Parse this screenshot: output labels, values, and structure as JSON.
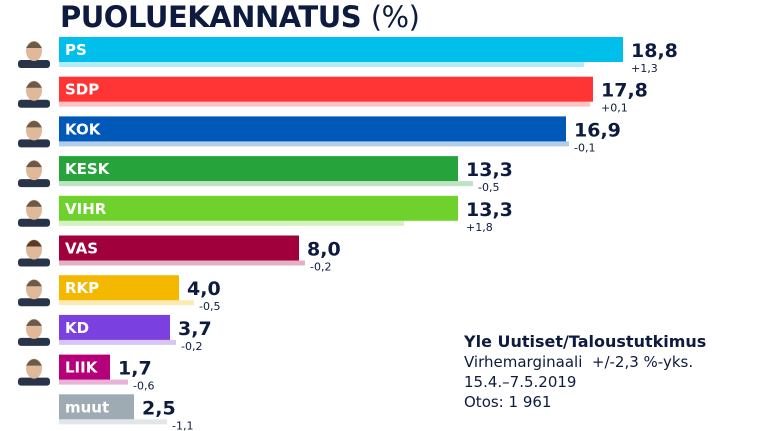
{
  "chart_data": {
    "type": "bar",
    "orientation": "horizontal",
    "title": "PUOLUEKANNATUS",
    "title_unit": "(%)",
    "categories": [
      "PS",
      "SDP",
      "KOK",
      "KESK",
      "VIHR",
      "VAS",
      "RKP",
      "KD",
      "LIIK",
      "muut"
    ],
    "series": [
      {
        "values": [
          18.8,
          17.8,
          16.9,
          13.3,
          13.3,
          8.0,
          4.0,
          3.7,
          1.7,
          2.5
        ]
      }
    ],
    "value_labels": [
      "18,8",
      "17,8",
      "16,9",
      "13,3",
      "13,3",
      "8,0",
      "4,0",
      "3,7",
      "1,7",
      "2,5"
    ],
    "changes": [
      1.3,
      0.1,
      -0.1,
      -0.5,
      1.8,
      -0.2,
      -0.5,
      -0.2,
      -0.6,
      -1.1
    ],
    "change_labels": [
      "+1,3",
      "+0,1",
      "-0,1",
      "-0,5",
      "+1,8",
      "-0,2",
      "-0,5",
      "-0,2",
      "-0,6",
      "-1,1"
    ],
    "colors": [
      "#00c0eb",
      "#ff3535",
      "#0058b8",
      "#27a33b",
      "#6fd22c",
      "#a0003c",
      "#f5b800",
      "#7b40e0",
      "#b5007a",
      "#9eabb3"
    ],
    "has_portrait": [
      true,
      true,
      true,
      true,
      true,
      true,
      true,
      true,
      true,
      false
    ],
    "grid": false
  },
  "notes": {
    "source": "Yle Uutiset/Taloustutkimus",
    "margin": "Virhemarginaali  +/-2,3 %-yks.",
    "dates": "15.4.–7.5.2019",
    "sample": "Otos: 1 961"
  }
}
